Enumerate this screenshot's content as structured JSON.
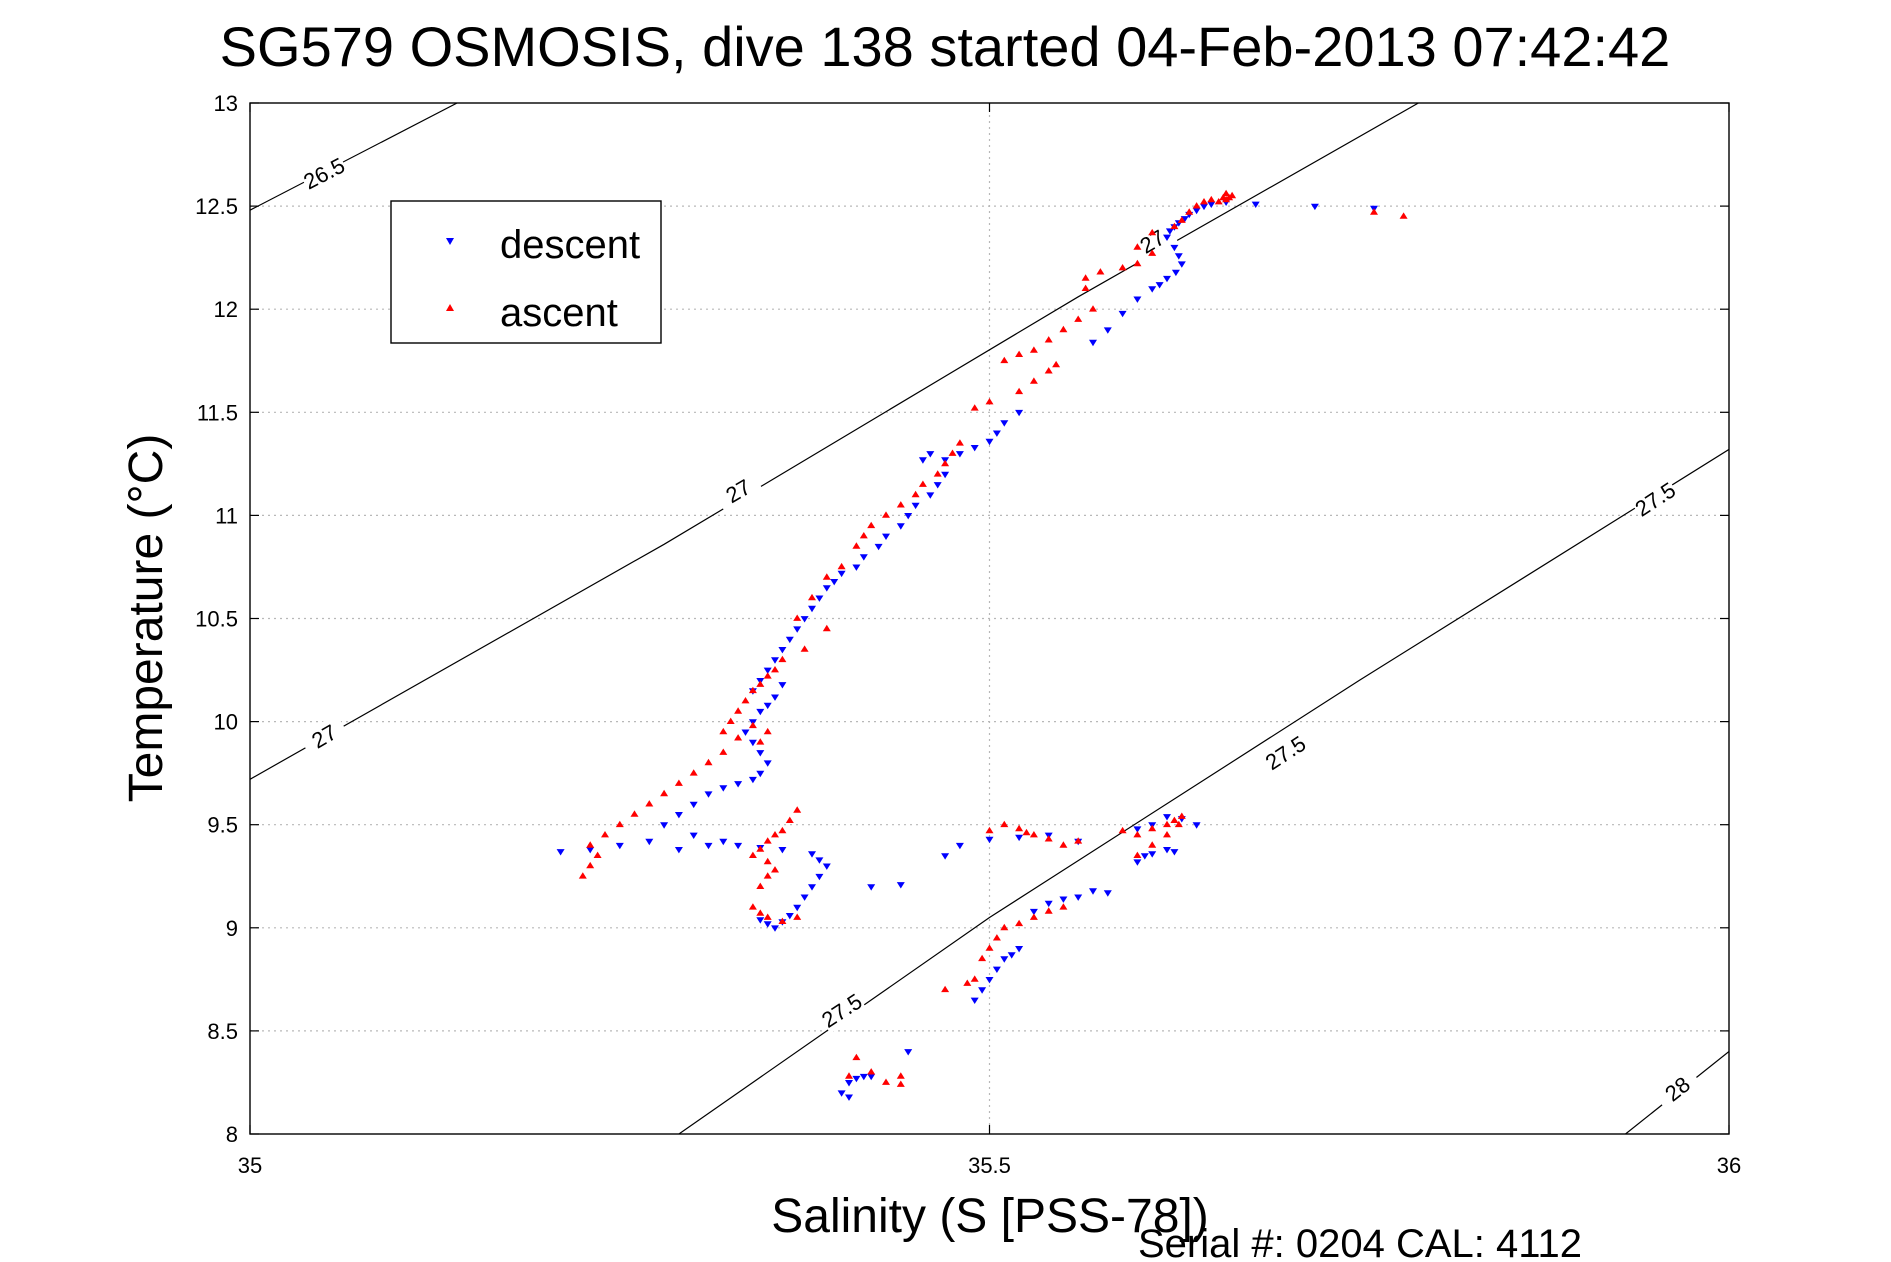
{
  "chart_data": {
    "type": "scatter",
    "title": "SG579 OSMOSIS, dive 138 started 04-Feb-2013 07:42:42",
    "xlabel": "Salinity (S [PSS-78])",
    "ylabel": "Temperature (°C)",
    "xlim": [
      35,
      36
    ],
    "ylim": [
      8,
      13
    ],
    "xticks": [
      35,
      35.5,
      36
    ],
    "xtick_labels": [
      "35",
      "35.5",
      "36"
    ],
    "yticks": [
      8,
      8.5,
      9,
      9.5,
      10,
      10.5,
      11,
      11.5,
      12,
      12.5,
      13
    ],
    "ytick_labels": [
      "8",
      "8.5",
      "9",
      "9.5",
      "10",
      "10.5",
      "11",
      "11.5",
      "12",
      "12.5",
      "13"
    ],
    "grid": true,
    "legend_position": "top-left",
    "density_contours": [
      {
        "level": "26.5",
        "points": [
          [
            35,
            12.48
          ],
          [
            35.14,
            13
          ]
        ],
        "labels": [
          [
            35.05,
            12.66
          ]
        ]
      },
      {
        "level": "27",
        "points": [
          [
            35,
            9.72
          ],
          [
            35.28,
            10.86
          ],
          [
            35.56,
            12.06
          ],
          [
            35.79,
            13
          ]
        ],
        "labels": [
          [
            35.05,
            9.93
          ],
          [
            35.33,
            11.12
          ],
          [
            35.61,
            12.33
          ]
        ]
      },
      {
        "level": "27.5",
        "points": [
          [
            35.29,
            8
          ],
          [
            35.5,
            9.05
          ],
          [
            35.75,
            10.2
          ],
          [
            36,
            11.32
          ]
        ],
        "labels": [
          [
            35.4,
            8.6
          ],
          [
            35.7,
            9.85
          ],
          [
            35.95,
            11.08
          ]
        ]
      },
      {
        "level": "28",
        "points": [
          [
            35.93,
            8
          ],
          [
            36,
            8.4
          ]
        ],
        "labels": [
          [
            35.965,
            8.22
          ]
        ]
      }
    ],
    "series": [
      {
        "name": "descent",
        "color": "#0000ff",
        "marker": "triangle-down",
        "points": [
          [
            35.65,
            12.51
          ],
          [
            35.645,
            12.5
          ],
          [
            35.64,
            12.48
          ],
          [
            35.635,
            12.46
          ],
          [
            35.632,
            12.44
          ],
          [
            35.628,
            12.42
          ],
          [
            35.625,
            12.4
          ],
          [
            35.622,
            12.38
          ],
          [
            35.62,
            12.35
          ],
          [
            35.625,
            12.3
          ],
          [
            35.628,
            12.26
          ],
          [
            35.63,
            12.22
          ],
          [
            35.626,
            12.18
          ],
          [
            35.62,
            12.15
          ],
          [
            35.615,
            12.12
          ],
          [
            35.61,
            12.1
          ],
          [
            35.6,
            12.05
          ],
          [
            35.59,
            11.98
          ],
          [
            35.58,
            11.9
          ],
          [
            35.57,
            11.84
          ],
          [
            35.66,
            12.52
          ],
          [
            35.68,
            12.51
          ],
          [
            35.72,
            12.5
          ],
          [
            35.76,
            12.49
          ],
          [
            35.52,
            11.5
          ],
          [
            35.51,
            11.45
          ],
          [
            35.505,
            11.4
          ],
          [
            35.5,
            11.36
          ],
          [
            35.49,
            11.33
          ],
          [
            35.48,
            11.3
          ],
          [
            35.47,
            11.27
          ],
          [
            35.46,
            11.3
          ],
          [
            35.455,
            11.27
          ],
          [
            35.47,
            11.2
          ],
          [
            35.465,
            11.15
          ],
          [
            35.46,
            11.1
          ],
          [
            35.45,
            11.05
          ],
          [
            35.445,
            11.0
          ],
          [
            35.44,
            10.95
          ],
          [
            35.43,
            10.9
          ],
          [
            35.425,
            10.85
          ],
          [
            35.415,
            10.8
          ],
          [
            35.41,
            10.75
          ],
          [
            35.4,
            10.72
          ],
          [
            35.395,
            10.68
          ],
          [
            35.39,
            10.65
          ],
          [
            35.385,
            10.6
          ],
          [
            35.38,
            10.55
          ],
          [
            35.375,
            10.5
          ],
          [
            35.37,
            10.45
          ],
          [
            35.365,
            10.4
          ],
          [
            35.36,
            10.35
          ],
          [
            35.355,
            10.3
          ],
          [
            35.35,
            10.25
          ],
          [
            35.345,
            10.2
          ],
          [
            35.34,
            10.15
          ],
          [
            35.36,
            10.18
          ],
          [
            35.355,
            10.12
          ],
          [
            35.35,
            10.08
          ],
          [
            35.345,
            10.05
          ],
          [
            35.34,
            10.0
          ],
          [
            35.335,
            9.95
          ],
          [
            35.34,
            9.9
          ],
          [
            35.345,
            9.85
          ],
          [
            35.35,
            9.8
          ],
          [
            35.345,
            9.75
          ],
          [
            35.34,
            9.72
          ],
          [
            35.33,
            9.7
          ],
          [
            35.32,
            9.68
          ],
          [
            35.31,
            9.65
          ],
          [
            35.3,
            9.6
          ],
          [
            35.29,
            9.55
          ],
          [
            35.28,
            9.5
          ],
          [
            35.3,
            9.45
          ],
          [
            35.32,
            9.42
          ],
          [
            35.33,
            9.4
          ],
          [
            35.345,
            9.39
          ],
          [
            35.36,
            9.38
          ],
          [
            35.38,
            9.36
          ],
          [
            35.385,
            9.33
          ],
          [
            35.39,
            9.3
          ],
          [
            35.385,
            9.25
          ],
          [
            35.38,
            9.2
          ],
          [
            35.375,
            9.15
          ],
          [
            35.37,
            9.1
          ],
          [
            35.365,
            9.06
          ],
          [
            35.36,
            9.03
          ],
          [
            35.355,
            9.0
          ],
          [
            35.35,
            9.02
          ],
          [
            35.345,
            9.04
          ],
          [
            35.27,
            9.42
          ],
          [
            35.25,
            9.4
          ],
          [
            35.23,
            9.38
          ],
          [
            35.21,
            9.37
          ],
          [
            35.29,
            9.38
          ],
          [
            35.31,
            9.4
          ],
          [
            35.42,
            9.2
          ],
          [
            35.44,
            9.21
          ],
          [
            35.47,
            9.35
          ],
          [
            35.48,
            9.4
          ],
          [
            35.5,
            9.43
          ],
          [
            35.52,
            9.44
          ],
          [
            35.54,
            9.45
          ],
          [
            35.56,
            9.42
          ],
          [
            35.64,
            9.5
          ],
          [
            35.63,
            9.53
          ],
          [
            35.62,
            9.54
          ],
          [
            35.61,
            9.5
          ],
          [
            35.6,
            9.48
          ],
          [
            35.605,
            9.35
          ],
          [
            35.6,
            9.32
          ],
          [
            35.61,
            9.36
          ],
          [
            35.62,
            9.38
          ],
          [
            35.625,
            9.37
          ],
          [
            35.57,
            9.18
          ],
          [
            35.58,
            9.17
          ],
          [
            35.56,
            9.15
          ],
          [
            35.55,
            9.14
          ],
          [
            35.54,
            9.12
          ],
          [
            35.53,
            9.08
          ],
          [
            35.52,
            8.9
          ],
          [
            35.515,
            8.87
          ],
          [
            35.51,
            8.85
          ],
          [
            35.505,
            8.8
          ],
          [
            35.5,
            8.75
          ],
          [
            35.495,
            8.7
          ],
          [
            35.49,
            8.65
          ],
          [
            35.41,
            8.27
          ],
          [
            35.415,
            8.28
          ],
          [
            35.42,
            8.28
          ],
          [
            35.405,
            8.25
          ],
          [
            35.4,
            8.2
          ],
          [
            35.445,
            8.4
          ],
          [
            35.405,
            8.18
          ]
        ]
      },
      {
        "name": "ascent",
        "color": "#ff0000",
        "marker": "triangle-up",
        "points": [
          [
            35.66,
            12.53
          ],
          [
            35.662,
            12.54
          ],
          [
            35.664,
            12.55
          ],
          [
            35.66,
            12.56
          ],
          [
            35.658,
            12.54
          ],
          [
            35.655,
            12.52
          ],
          [
            35.65,
            12.53
          ],
          [
            35.645,
            12.52
          ],
          [
            35.64,
            12.5
          ],
          [
            35.635,
            12.47
          ],
          [
            35.63,
            12.43
          ],
          [
            35.625,
            12.4
          ],
          [
            35.61,
            12.37
          ],
          [
            35.6,
            12.3
          ],
          [
            35.61,
            12.27
          ],
          [
            35.6,
            12.22
          ],
          [
            35.59,
            12.2
          ],
          [
            35.575,
            12.18
          ],
          [
            35.565,
            12.15
          ],
          [
            35.565,
            12.1
          ],
          [
            35.57,
            12.0
          ],
          [
            35.56,
            11.95
          ],
          [
            35.55,
            11.9
          ],
          [
            35.54,
            11.85
          ],
          [
            35.53,
            11.8
          ],
          [
            35.52,
            11.78
          ],
          [
            35.51,
            11.75
          ],
          [
            35.545,
            11.73
          ],
          [
            35.54,
            11.7
          ],
          [
            35.53,
            11.65
          ],
          [
            35.52,
            11.6
          ],
          [
            35.5,
            11.55
          ],
          [
            35.49,
            11.52
          ],
          [
            35.76,
            12.47
          ],
          [
            35.78,
            12.45
          ],
          [
            35.48,
            11.35
          ],
          [
            35.475,
            11.3
          ],
          [
            35.47,
            11.25
          ],
          [
            35.465,
            11.2
          ],
          [
            35.455,
            11.15
          ],
          [
            35.45,
            11.1
          ],
          [
            35.44,
            11.05
          ],
          [
            35.43,
            11.0
          ],
          [
            35.42,
            10.95
          ],
          [
            35.415,
            10.9
          ],
          [
            35.41,
            10.85
          ],
          [
            35.4,
            10.75
          ],
          [
            35.39,
            10.7
          ],
          [
            35.38,
            10.6
          ],
          [
            35.37,
            10.5
          ],
          [
            35.39,
            10.45
          ],
          [
            35.375,
            10.35
          ],
          [
            35.36,
            10.3
          ],
          [
            35.355,
            10.25
          ],
          [
            35.35,
            10.22
          ],
          [
            35.345,
            10.18
          ],
          [
            35.34,
            10.15
          ],
          [
            35.335,
            10.1
          ],
          [
            35.33,
            10.05
          ],
          [
            35.325,
            10.0
          ],
          [
            35.32,
            9.95
          ],
          [
            35.33,
            9.92
          ],
          [
            35.345,
            9.9
          ],
          [
            35.35,
            9.95
          ],
          [
            35.34,
            9.98
          ],
          [
            35.32,
            9.85
          ],
          [
            35.31,
            9.8
          ],
          [
            35.3,
            9.75
          ],
          [
            35.29,
            9.7
          ],
          [
            35.28,
            9.65
          ],
          [
            35.27,
            9.6
          ],
          [
            35.26,
            9.55
          ],
          [
            35.25,
            9.5
          ],
          [
            35.24,
            9.45
          ],
          [
            35.23,
            9.4
          ],
          [
            35.235,
            9.35
          ],
          [
            35.23,
            9.3
          ],
          [
            35.225,
            9.25
          ],
          [
            35.37,
            9.57
          ],
          [
            35.365,
            9.52
          ],
          [
            35.36,
            9.47
          ],
          [
            35.355,
            9.45
          ],
          [
            35.35,
            9.42
          ],
          [
            35.345,
            9.38
          ],
          [
            35.34,
            9.35
          ],
          [
            35.35,
            9.32
          ],
          [
            35.355,
            9.28
          ],
          [
            35.35,
            9.25
          ],
          [
            35.345,
            9.2
          ],
          [
            35.34,
            9.1
          ],
          [
            35.345,
            9.07
          ],
          [
            35.35,
            9.05
          ],
          [
            35.36,
            9.03
          ],
          [
            35.37,
            9.05
          ],
          [
            35.5,
            9.47
          ],
          [
            35.51,
            9.5
          ],
          [
            35.52,
            9.48
          ],
          [
            35.525,
            9.46
          ],
          [
            35.53,
            9.45
          ],
          [
            35.54,
            9.43
          ],
          [
            35.55,
            9.4
          ],
          [
            35.56,
            9.42
          ],
          [
            35.59,
            9.47
          ],
          [
            35.6,
            9.45
          ],
          [
            35.61,
            9.48
          ],
          [
            35.62,
            9.5
          ],
          [
            35.625,
            9.52
          ],
          [
            35.63,
            9.54
          ],
          [
            35.628,
            9.5
          ],
          [
            35.62,
            9.45
          ],
          [
            35.61,
            9.4
          ],
          [
            35.6,
            9.35
          ],
          [
            35.55,
            9.1
          ],
          [
            35.54,
            9.08
          ],
          [
            35.53,
            9.05
          ],
          [
            35.52,
            9.02
          ],
          [
            35.51,
            9.0
          ],
          [
            35.505,
            8.95
          ],
          [
            35.5,
            8.9
          ],
          [
            35.495,
            8.85
          ],
          [
            35.49,
            8.75
          ],
          [
            35.485,
            8.73
          ],
          [
            35.47,
            8.7
          ],
          [
            35.44,
            8.28
          ],
          [
            35.43,
            8.25
          ],
          [
            35.42,
            8.3
          ],
          [
            35.41,
            8.37
          ],
          [
            35.405,
            8.28
          ],
          [
            35.44,
            8.24
          ]
        ]
      }
    ]
  },
  "footer": {
    "serial_text": "Serial #: 0204  CAL: 4112"
  }
}
